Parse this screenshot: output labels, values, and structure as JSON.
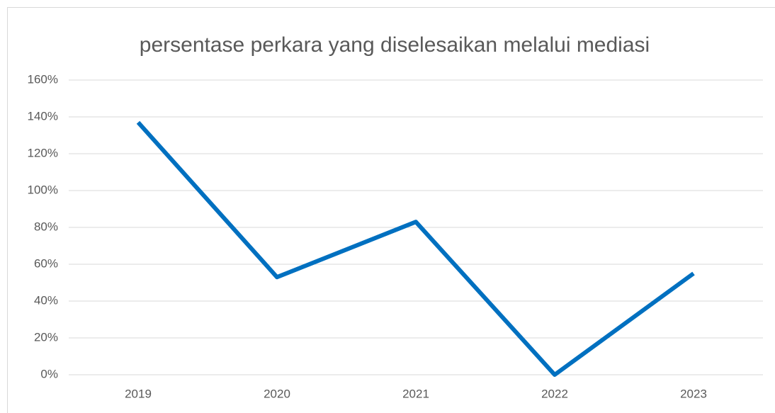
{
  "chart_data": {
    "type": "line",
    "title": "persentase perkara yang diselesaikan melalui mediasi",
    "categories": [
      "2019",
      "2020",
      "2021",
      "2022",
      "2023"
    ],
    "series": [
      {
        "name": "persentase",
        "color": "#0070c0",
        "values": [
          137,
          53,
          83,
          0,
          55
        ]
      }
    ],
    "ylim": [
      0,
      160
    ],
    "yticks": [
      {
        "value": 0,
        "label": "0%"
      },
      {
        "value": 20,
        "label": "20%"
      },
      {
        "value": 40,
        "label": "40%"
      },
      {
        "value": 60,
        "label": "60%"
      },
      {
        "value": 80,
        "label": "80%"
      },
      {
        "value": 100,
        "label": "100%"
      },
      {
        "value": 120,
        "label": "120%"
      },
      {
        "value": 140,
        "label": "140%"
      },
      {
        "value": 160,
        "label": "160%"
      }
    ],
    "grid": true
  }
}
